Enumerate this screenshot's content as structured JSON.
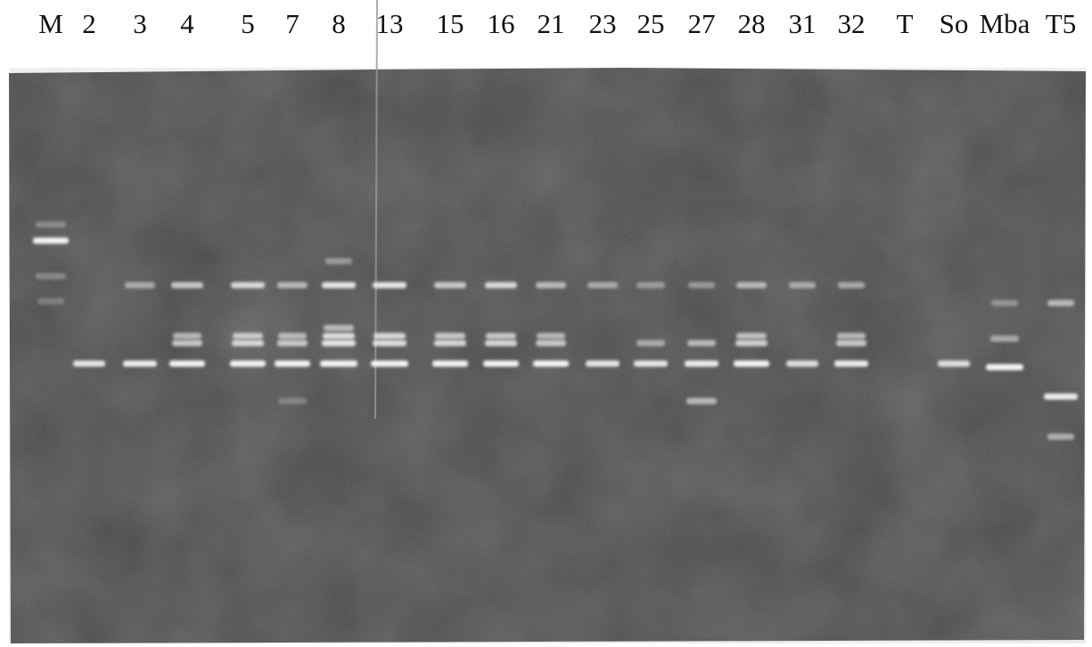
{
  "lanes": [
    "M",
    "2",
    "3",
    "4",
    "5",
    "7",
    "8",
    "13",
    "15",
    "16",
    "21",
    "23",
    "25",
    "27",
    "28",
    "31",
    "32",
    "T",
    "So",
    "Mba",
    "T5"
  ]
}
